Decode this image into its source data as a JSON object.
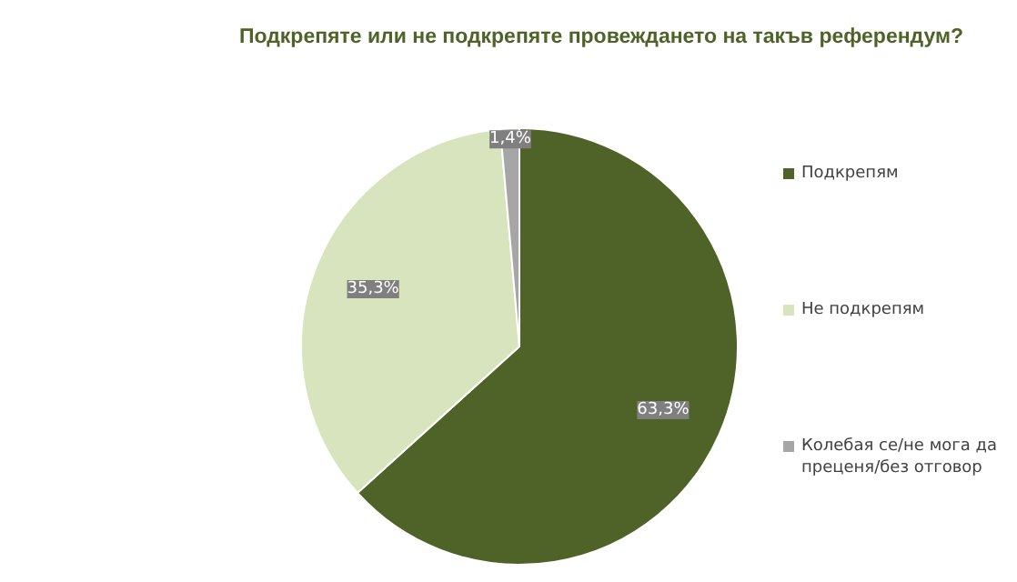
{
  "chart_data": {
    "type": "pie",
    "title": "Подкрепяте или не подкрепяте провеждането на такъв референдум?",
    "categories": [
      "Подкрепям",
      "Не подкрепям",
      "Колебая се/не мога да преценя/без отговор"
    ],
    "values": [
      63.3,
      35.3,
      1.4
    ],
    "colors": [
      "#4f6228",
      "#d7e4bd",
      "#a6a6a6"
    ],
    "value_labels": [
      "63,3%",
      "35,3%",
      "1,4%"
    ],
    "legend": "right"
  }
}
